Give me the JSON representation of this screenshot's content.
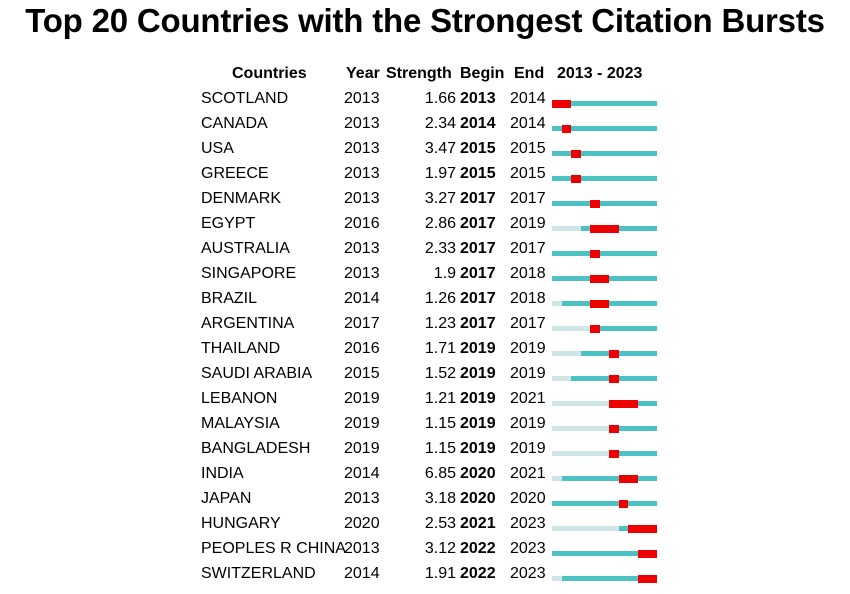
{
  "title": "Top 20 Countries with the Strongest Citation Bursts",
  "chart_data": {
    "type": "table",
    "title": "Top 20 Countries with the Strongest Citation Bursts",
    "columns": [
      "Countries",
      "Year",
      "Strength",
      "Begin",
      "End",
      "2013 - 2023"
    ],
    "range_start": 2013,
    "range_end": 2023,
    "colors": {
      "before_first_year": "#cfe6e8",
      "active_years": "#4cc2c4",
      "burst": "#ee0000"
    },
    "rows": [
      {
        "country": "SCOTLAND",
        "year": "2013",
        "strength": "1.66",
        "begin": "2013",
        "end": "2014"
      },
      {
        "country": "CANADA",
        "year": "2013",
        "strength": "2.34",
        "begin": "2014",
        "end": "2014"
      },
      {
        "country": "USA",
        "year": "2013",
        "strength": "3.47",
        "begin": "2015",
        "end": "2015"
      },
      {
        "country": "GREECE",
        "year": "2013",
        "strength": "1.97",
        "begin": "2015",
        "end": "2015"
      },
      {
        "country": "DENMARK",
        "year": "2013",
        "strength": "3.27",
        "begin": "2017",
        "end": "2017"
      },
      {
        "country": "EGYPT",
        "year": "2016",
        "strength": "2.86",
        "begin": "2017",
        "end": "2019"
      },
      {
        "country": "AUSTRALIA",
        "year": "2013",
        "strength": "2.33",
        "begin": "2017",
        "end": "2017"
      },
      {
        "country": "SINGAPORE",
        "year": "2013",
        "strength": "1.9",
        "begin": "2017",
        "end": "2018"
      },
      {
        "country": "BRAZIL",
        "year": "2014",
        "strength": "1.26",
        "begin": "2017",
        "end": "2018"
      },
      {
        "country": "ARGENTINA",
        "year": "2017",
        "strength": "1.23",
        "begin": "2017",
        "end": "2017"
      },
      {
        "country": "THAILAND",
        "year": "2016",
        "strength": "1.71",
        "begin": "2019",
        "end": "2019"
      },
      {
        "country": "SAUDI ARABIA",
        "year": "2015",
        "strength": "1.52",
        "begin": "2019",
        "end": "2019"
      },
      {
        "country": "LEBANON",
        "year": "2019",
        "strength": "1.21",
        "begin": "2019",
        "end": "2021"
      },
      {
        "country": "MALAYSIA",
        "year": "2019",
        "strength": "1.15",
        "begin": "2019",
        "end": "2019"
      },
      {
        "country": "BANGLADESH",
        "year": "2019",
        "strength": "1.15",
        "begin": "2019",
        "end": "2019"
      },
      {
        "country": "INDIA",
        "year": "2014",
        "strength": "6.85",
        "begin": "2020",
        "end": "2021"
      },
      {
        "country": "JAPAN",
        "year": "2013",
        "strength": "3.18",
        "begin": "2020",
        "end": "2020"
      },
      {
        "country": "HUNGARY",
        "year": "2020",
        "strength": "2.53",
        "begin": "2021",
        "end": "2023"
      },
      {
        "country": "PEOPLES R CHINA",
        "year": "2013",
        "strength": "3.12",
        "begin": "2022",
        "end": "2023"
      },
      {
        "country": "SWITZERLAND",
        "year": "2014",
        "strength": "1.91",
        "begin": "2022",
        "end": "2023"
      }
    ]
  }
}
